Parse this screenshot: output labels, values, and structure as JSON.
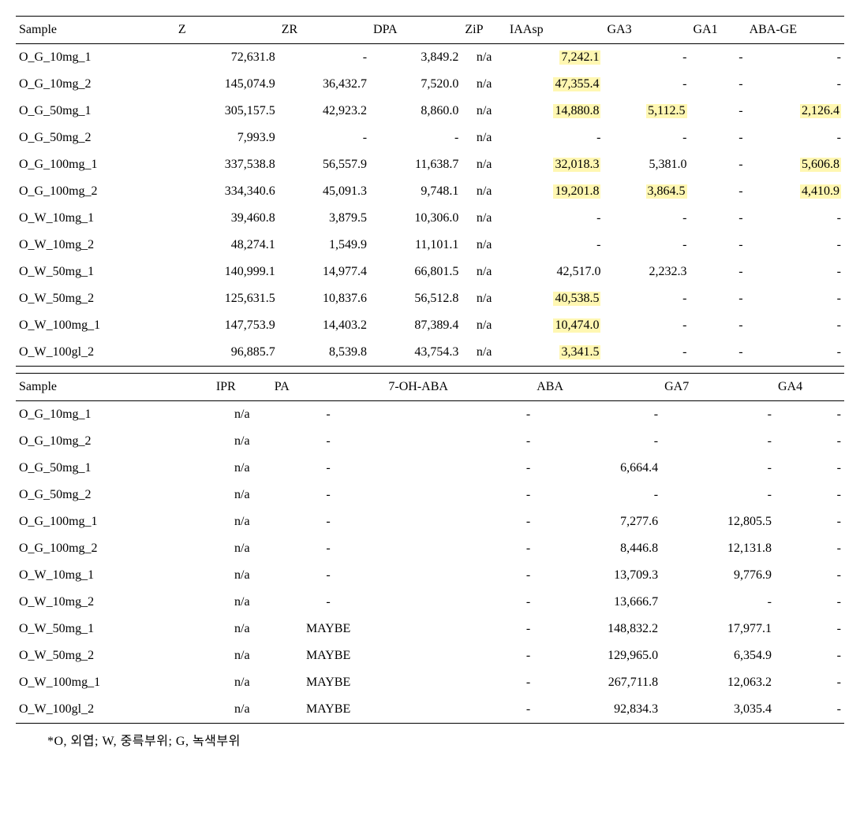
{
  "colors": {
    "highlight_bg": "#fff7b2",
    "text": "#000000",
    "border": "#000000",
    "page_bg": "#ffffff"
  },
  "typography": {
    "font_family": "Times New Roman",
    "base_fontsize_pt": 12
  },
  "table1": {
    "columns": [
      "Sample",
      "Z",
      "ZR",
      "DPA",
      "ZiP",
      "IAAsp",
      "GA3",
      "GA1",
      "ABA-GE"
    ],
    "col_align": [
      "left",
      "right",
      "right",
      "right",
      "center",
      "right",
      "right",
      "right",
      "right"
    ],
    "rows": [
      {
        "sample": "O_G_10mg_1",
        "cells": [
          {
            "v": "72,631.8"
          },
          {
            "v": "-"
          },
          {
            "v": "3,849.2"
          },
          {
            "v": "n/a"
          },
          {
            "v": "7,242.1",
            "hl": true
          },
          {
            "v": "-"
          },
          {
            "v": "-"
          },
          {
            "v": "-"
          }
        ]
      },
      {
        "sample": "O_G_10mg_2",
        "cells": [
          {
            "v": "145,074.9"
          },
          {
            "v": "36,432.7"
          },
          {
            "v": "7,520.0"
          },
          {
            "v": "n/a"
          },
          {
            "v": "47,355.4",
            "hl": true
          },
          {
            "v": "-"
          },
          {
            "v": "-"
          },
          {
            "v": "-"
          }
        ]
      },
      {
        "sample": "O_G_50mg_1",
        "cells": [
          {
            "v": "305,157.5"
          },
          {
            "v": "42,923.2"
          },
          {
            "v": "8,860.0"
          },
          {
            "v": "n/a"
          },
          {
            "v": "14,880.8",
            "hl": true
          },
          {
            "v": "5,112.5",
            "hl": true
          },
          {
            "v": "-"
          },
          {
            "v": "2,126.4",
            "hl": true
          }
        ]
      },
      {
        "sample": "O_G_50mg_2",
        "cells": [
          {
            "v": "7,993.9"
          },
          {
            "v": "-"
          },
          {
            "v": "-"
          },
          {
            "v": "n/a"
          },
          {
            "v": "-"
          },
          {
            "v": "-"
          },
          {
            "v": "-"
          },
          {
            "v": "-"
          }
        ]
      },
      {
        "sample": "O_G_100mg_1",
        "cells": [
          {
            "v": "337,538.8"
          },
          {
            "v": "56,557.9"
          },
          {
            "v": "11,638.7"
          },
          {
            "v": "n/a"
          },
          {
            "v": "32,018.3",
            "hl": true
          },
          {
            "v": "5,381.0"
          },
          {
            "v": "-"
          },
          {
            "v": "5,606.8",
            "hl": true
          }
        ]
      },
      {
        "sample": "O_G_100mg_2",
        "cells": [
          {
            "v": "334,340.6"
          },
          {
            "v": "45,091.3"
          },
          {
            "v": "9,748.1"
          },
          {
            "v": "n/a"
          },
          {
            "v": "19,201.8",
            "hl": true
          },
          {
            "v": "3,864.5",
            "hl": true
          },
          {
            "v": "-"
          },
          {
            "v": "4,410.9",
            "hl": true
          }
        ]
      },
      {
        "sample": "O_W_10mg_1",
        "cells": [
          {
            "v": "39,460.8"
          },
          {
            "v": "3,879.5"
          },
          {
            "v": "10,306.0"
          },
          {
            "v": "n/a"
          },
          {
            "v": "-"
          },
          {
            "v": "-"
          },
          {
            "v": "-"
          },
          {
            "v": "-"
          }
        ]
      },
      {
        "sample": "O_W_10mg_2",
        "cells": [
          {
            "v": "48,274.1"
          },
          {
            "v": "1,549.9"
          },
          {
            "v": "11,101.1"
          },
          {
            "v": "n/a"
          },
          {
            "v": "-"
          },
          {
            "v": "-"
          },
          {
            "v": "-"
          },
          {
            "v": "-"
          }
        ]
      },
      {
        "sample": "O_W_50mg_1",
        "cells": [
          {
            "v": "140,999.1"
          },
          {
            "v": "14,977.4"
          },
          {
            "v": "66,801.5"
          },
          {
            "v": "n/a"
          },
          {
            "v": "42,517.0"
          },
          {
            "v": "2,232.3"
          },
          {
            "v": "-"
          },
          {
            "v": "-"
          }
        ]
      },
      {
        "sample": "O_W_50mg_2",
        "cells": [
          {
            "v": "125,631.5"
          },
          {
            "v": "10,837.6"
          },
          {
            "v": "56,512.8"
          },
          {
            "v": "n/a"
          },
          {
            "v": "40,538.5",
            "hl": true
          },
          {
            "v": "-"
          },
          {
            "v": "-"
          },
          {
            "v": "-"
          }
        ]
      },
      {
        "sample": "O_W_100mg_1",
        "cells": [
          {
            "v": "147,753.9"
          },
          {
            "v": "14,403.2"
          },
          {
            "v": "87,389.4"
          },
          {
            "v": "n/a"
          },
          {
            "v": "10,474.0",
            "hl": true
          },
          {
            "v": "-"
          },
          {
            "v": "-"
          },
          {
            "v": "-"
          }
        ]
      },
      {
        "sample": "O_W_100gl_2",
        "cells": [
          {
            "v": "96,885.7"
          },
          {
            "v": "8,539.8"
          },
          {
            "v": "43,754.3"
          },
          {
            "v": "n/a"
          },
          {
            "v": "3,341.5",
            "hl": true
          },
          {
            "v": "-"
          },
          {
            "v": "-"
          },
          {
            "v": "-"
          }
        ]
      }
    ]
  },
  "table2": {
    "columns": [
      "Sample",
      "IPR",
      "PA",
      "7-OH-ABA",
      "ABA",
      "GA7",
      "GA4"
    ],
    "col_align": [
      "left",
      "center",
      "center",
      "right",
      "right",
      "right",
      "right"
    ],
    "rows": [
      {
        "sample": "O_G_10mg_1",
        "cells": [
          {
            "v": "n/a"
          },
          {
            "v": "-"
          },
          {
            "v": "-"
          },
          {
            "v": "-"
          },
          {
            "v": "-"
          },
          {
            "v": "-"
          }
        ]
      },
      {
        "sample": "O_G_10mg_2",
        "cells": [
          {
            "v": "n/a"
          },
          {
            "v": "-"
          },
          {
            "v": "-"
          },
          {
            "v": "-"
          },
          {
            "v": "-"
          },
          {
            "v": "-"
          }
        ]
      },
      {
        "sample": "O_G_50mg_1",
        "cells": [
          {
            "v": "n/a"
          },
          {
            "v": "-"
          },
          {
            "v": "-"
          },
          {
            "v": "6,664.4"
          },
          {
            "v": "-"
          },
          {
            "v": "-"
          }
        ]
      },
      {
        "sample": "O_G_50mg_2",
        "cells": [
          {
            "v": "n/a"
          },
          {
            "v": "-"
          },
          {
            "v": "-"
          },
          {
            "v": "-"
          },
          {
            "v": "-"
          },
          {
            "v": "-"
          }
        ]
      },
      {
        "sample": "O_G_100mg_1",
        "cells": [
          {
            "v": "n/a"
          },
          {
            "v": "-"
          },
          {
            "v": "-"
          },
          {
            "v": "7,277.6"
          },
          {
            "v": "12,805.5"
          },
          {
            "v": "-"
          }
        ]
      },
      {
        "sample": "O_G_100mg_2",
        "cells": [
          {
            "v": "n/a"
          },
          {
            "v": "-"
          },
          {
            "v": "-"
          },
          {
            "v": "8,446.8"
          },
          {
            "v": "12,131.8"
          },
          {
            "v": "-"
          }
        ]
      },
      {
        "sample": "O_W_10mg_1",
        "cells": [
          {
            "v": "n/a"
          },
          {
            "v": "-"
          },
          {
            "v": "-"
          },
          {
            "v": "13,709.3"
          },
          {
            "v": "9,776.9"
          },
          {
            "v": "-"
          }
        ]
      },
      {
        "sample": "O_W_10mg_2",
        "cells": [
          {
            "v": "n/a"
          },
          {
            "v": "-"
          },
          {
            "v": "-"
          },
          {
            "v": "13,666.7"
          },
          {
            "v": "-"
          },
          {
            "v": "-"
          }
        ]
      },
      {
        "sample": "O_W_50mg_1",
        "cells": [
          {
            "v": "n/a"
          },
          {
            "v": "MAYBE"
          },
          {
            "v": "-"
          },
          {
            "v": "148,832.2"
          },
          {
            "v": "17,977.1"
          },
          {
            "v": "-"
          }
        ]
      },
      {
        "sample": "O_W_50mg_2",
        "cells": [
          {
            "v": "n/a"
          },
          {
            "v": "MAYBE"
          },
          {
            "v": "-"
          },
          {
            "v": "129,965.0"
          },
          {
            "v": "6,354.9"
          },
          {
            "v": "-"
          }
        ]
      },
      {
        "sample": "O_W_100mg_1",
        "cells": [
          {
            "v": "n/a"
          },
          {
            "v": "MAYBE"
          },
          {
            "v": "-"
          },
          {
            "v": "267,711.8"
          },
          {
            "v": "12,063.2"
          },
          {
            "v": "-"
          }
        ]
      },
      {
        "sample": "O_W_100gl_2",
        "cells": [
          {
            "v": "n/a"
          },
          {
            "v": "MAYBE"
          },
          {
            "v": "-"
          },
          {
            "v": "92,834.3"
          },
          {
            "v": "3,035.4"
          },
          {
            "v": "-"
          }
        ]
      }
    ]
  },
  "footnote": "*O, 외엽;   W, 중륵부위;   G, 녹색부위"
}
